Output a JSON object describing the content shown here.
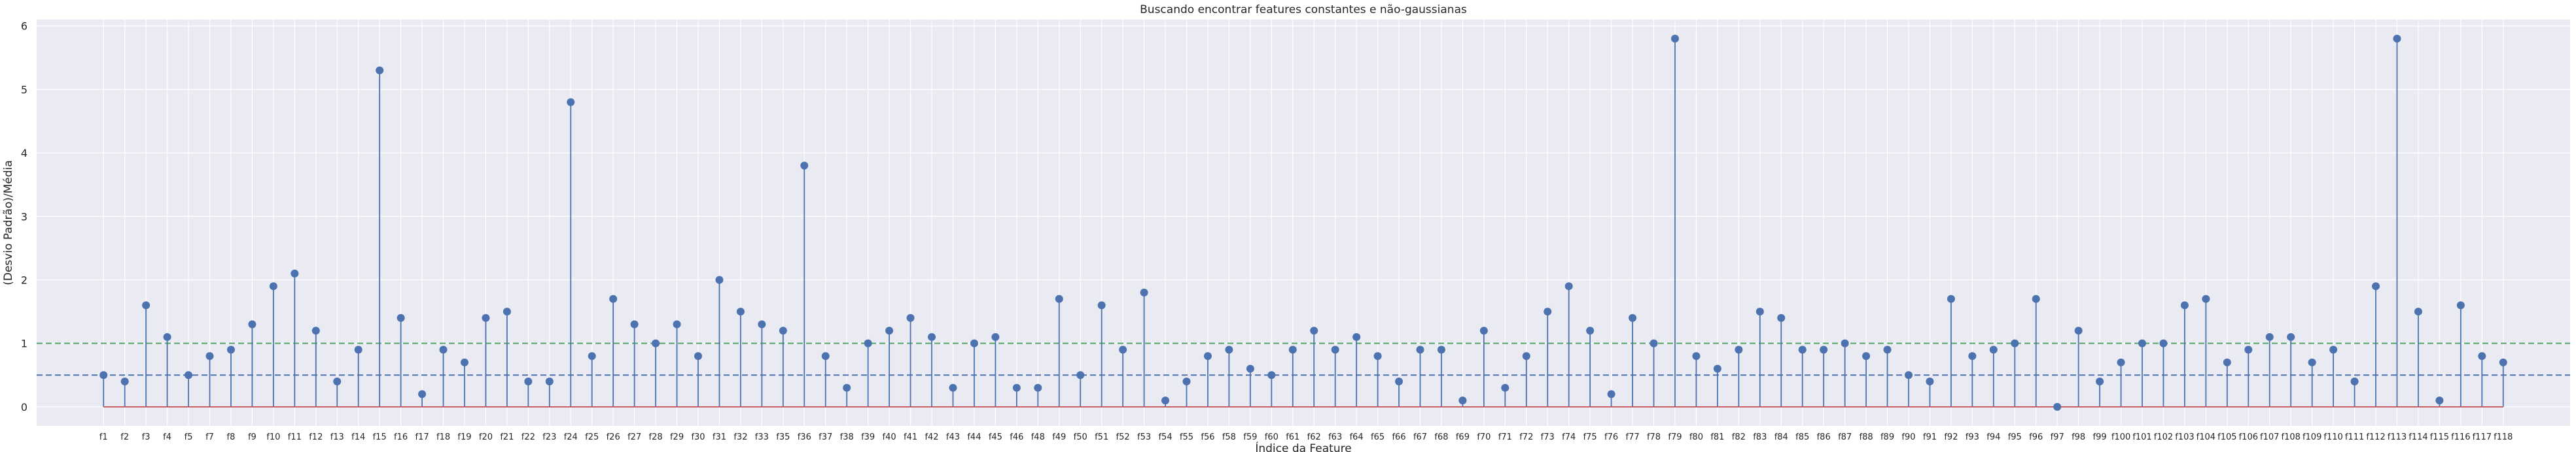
{
  "colors": {
    "background": "#eaeaf2",
    "grid": "#ffffff",
    "stem": "#4c72b0",
    "marker": "#4c72b0",
    "baseline": "#c44e52",
    "mean_line": "#4c72b0",
    "threshold_line": "#55a868",
    "text": "#262626"
  },
  "chart_data": {
    "type": "stem",
    "title": "Buscando encontrar features constantes e não-gaussianas",
    "xlabel": "Índice da Feature",
    "ylabel": "(Desvio Padrão)/Média",
    "ylim": [
      -0.3,
      6.1
    ],
    "yticks": [
      0,
      1,
      2,
      3,
      4,
      5,
      6
    ],
    "grid": true,
    "baseline": 0,
    "reference_lines": [
      {
        "style": "dashed",
        "color": "#4c72b0",
        "y": 0.5
      },
      {
        "style": "dashed",
        "color": "#55a868",
        "y": 1.0
      }
    ],
    "categories": [
      "f1",
      "f2",
      "f3",
      "f4",
      "f5",
      "f7",
      "f8",
      "f9",
      "f10",
      "f11",
      "f12",
      "f13",
      "f14",
      "f15",
      "f16",
      "f17",
      "f18",
      "f19",
      "f20",
      "f21",
      "f22",
      "f23",
      "f24",
      "f25",
      "f26",
      "f27",
      "f28",
      "f29",
      "f30",
      "f31",
      "f32",
      "f33",
      "f35",
      "f36",
      "f37",
      "f38",
      "f39",
      "f40",
      "f41",
      "f42",
      "f43",
      "f44",
      "f45",
      "f46",
      "f48",
      "f49",
      "f50",
      "f51",
      "f52",
      "f53",
      "f54",
      "f55",
      "f56",
      "f58",
      "f59",
      "f60",
      "f61",
      "f62",
      "f63",
      "f64",
      "f65",
      "f66",
      "f67",
      "f68",
      "f69",
      "f70",
      "f71",
      "f72",
      "f73",
      "f74",
      "f75",
      "f76",
      "f77",
      "f78",
      "f79",
      "f80",
      "f81",
      "f82",
      "f83",
      "f84",
      "f85",
      "f86",
      "f87",
      "f88",
      "f89",
      "f90",
      "f91",
      "f92",
      "f93",
      "f94",
      "f95",
      "f96",
      "f97",
      "f98",
      "f99",
      "f100",
      "f101",
      "f102",
      "f103",
      "f104",
      "f105",
      "f106",
      "f107",
      "f108",
      "f109",
      "f110",
      "f111",
      "f112",
      "f113",
      "f114",
      "f115",
      "f116",
      "f117",
      "f118"
    ],
    "values": [
      0.5,
      0.4,
      1.6,
      1.1,
      0.5,
      0.8,
      0.9,
      1.3,
      1.9,
      2.1,
      1.2,
      0.4,
      0.9,
      5.3,
      1.4,
      0.2,
      0.9,
      0.7,
      1.4,
      1.5,
      0.4,
      0.4,
      4.8,
      0.8,
      1.7,
      1.3,
      1.0,
      1.3,
      0.8,
      2.0,
      1.5,
      1.3,
      1.2,
      3.8,
      0.8,
      0.3,
      1.0,
      1.2,
      1.4,
      1.1,
      0.3,
      1.0,
      1.1,
      0.3,
      0.3,
      1.7,
      0.5,
      1.6,
      0.9,
      1.8,
      0.1,
      0.4,
      0.8,
      0.9,
      0.6,
      0.5,
      0.9,
      1.2,
      0.9,
      1.1,
      0.8,
      0.4,
      0.9,
      0.9,
      0.1,
      1.2,
      0.3,
      0.8,
      1.5,
      1.9,
      1.2,
      0.2,
      1.4,
      1.0,
      5.8,
      0.8,
      0.6,
      0.9,
      1.5,
      1.4,
      0.9,
      0.9,
      1.0,
      0.8,
      0.9,
      0.5,
      0.4,
      1.7,
      0.8,
      0.9,
      1.0,
      1.7,
      0.0,
      1.2,
      0.4,
      0.7,
      1.0,
      1.0,
      1.6,
      1.7,
      0.7,
      0.9,
      1.1,
      1.1,
      0.7,
      0.9,
      0.4,
      1.9,
      5.8,
      1.5,
      0.1,
      1.6,
      0.8,
      0.7
    ]
  }
}
